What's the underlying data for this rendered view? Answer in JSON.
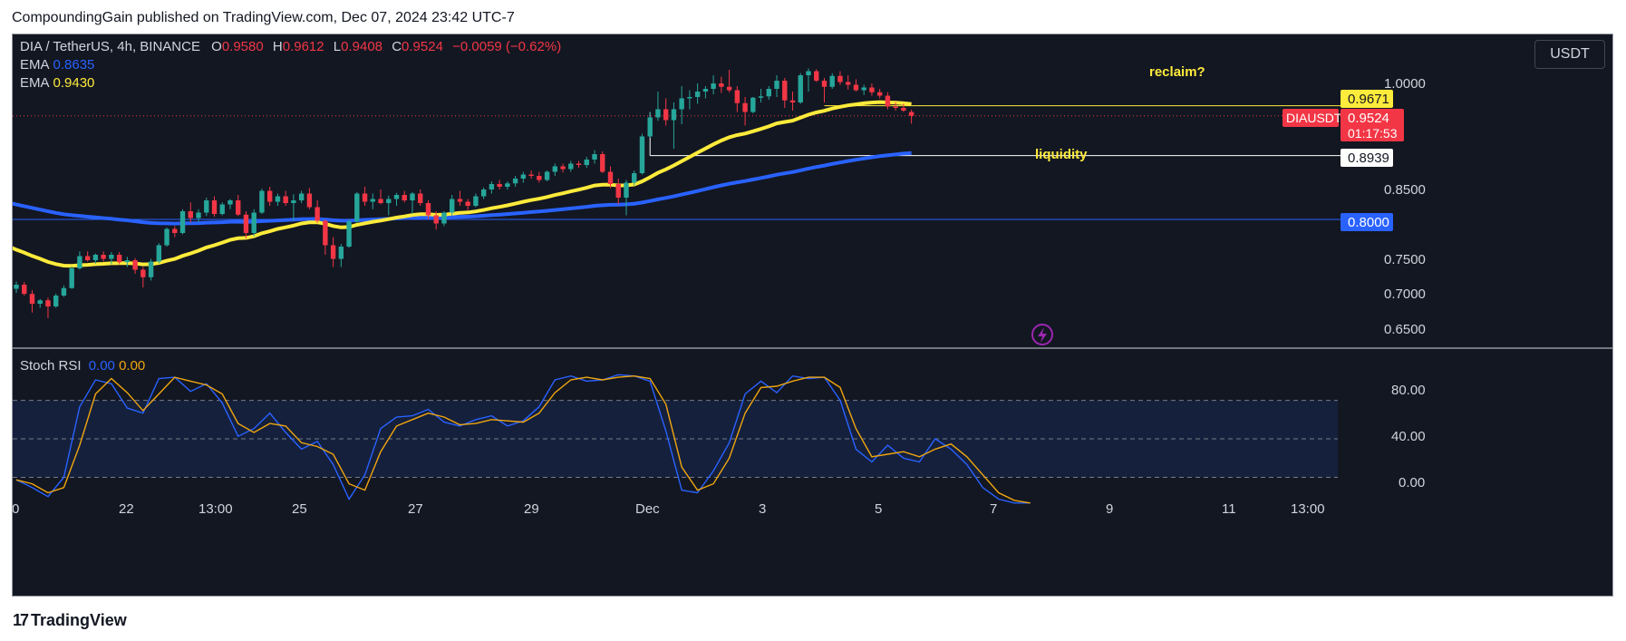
{
  "header": {
    "text": "CompoundingGain published on TradingView.com, Dec 07, 2024 23:42 UTC-7"
  },
  "footer": {
    "logo_text": "TradingView"
  },
  "legend": {
    "symbol": "DIA / TetherUS, 4h, BINANCE",
    "o_label": "O",
    "o_value": "0.9580",
    "h_label": "H",
    "h_value": "0.9612",
    "l_label": "L",
    "l_value": "0.9408",
    "c_label": "C",
    "c_value": "0.9524",
    "change": "−0.0059 (−0.62%)",
    "ema1_label": "EMA",
    "ema1_value": "0.8635",
    "ema2_label": "EMA",
    "ema2_value": "0.9430"
  },
  "stoch_legend": {
    "label": "Stoch RSI",
    "k_value": "0.00",
    "d_value": "0.00"
  },
  "currency_button": "USDT",
  "colors": {
    "background": "#131722",
    "up": "#26a69a",
    "down": "#f23645",
    "ema_fast": "#2962ff",
    "ema_slow": "#ffeb3b",
    "stoch_k": "#2962ff",
    "stoch_d": "#f0a60f"
  },
  "chart_data": {
    "type": "candlestick",
    "symbol": "DIAUSDT",
    "x_ticks": [
      "0",
      "22",
      "13:00",
      "25",
      "27",
      "29",
      "Dec",
      "3",
      "5",
      "7",
      "9",
      "11",
      "13:00"
    ],
    "y_ticks": [
      "1.0000",
      "0.8500",
      "0.7500",
      "0.7000",
      "0.6500"
    ],
    "ylim": [
      0.612,
      1.072
    ],
    "price_labels": {
      "level_0967": "0.9671",
      "symbol_tag": "DIAUSDT",
      "last_price": "0.9524",
      "countdown": "01:17:53",
      "level_0894": "0.8939",
      "level_0800": "0.8000"
    },
    "horizontal_levels": [
      {
        "value": 0.9671,
        "color": "#ffeb3b"
      },
      {
        "value": 0.8939,
        "color": "#ffffff"
      },
      {
        "value": 0.8,
        "color": "#2962ff"
      }
    ],
    "annotations": [
      "reclaim?",
      "liquidity"
    ],
    "candles": [
      [
        0.698,
        0.7085,
        0.692,
        0.704
      ],
      [
        0.704,
        0.708,
        0.688,
        0.6905
      ],
      [
        0.6905,
        0.696,
        0.663,
        0.676
      ],
      [
        0.676,
        0.683,
        0.67,
        0.681
      ],
      [
        0.681,
        0.685,
        0.655,
        0.672
      ],
      [
        0.672,
        0.691,
        0.67,
        0.688
      ],
      [
        0.688,
        0.703,
        0.686,
        0.699
      ],
      [
        0.699,
        0.731,
        0.698,
        0.728
      ],
      [
        0.728,
        0.753,
        0.726,
        0.746
      ],
      [
        0.746,
        0.753,
        0.738,
        0.74
      ],
      [
        0.74,
        0.75,
        0.735,
        0.748
      ],
      [
        0.748,
        0.753,
        0.738,
        0.742
      ],
      [
        0.742,
        0.752,
        0.734,
        0.748
      ],
      [
        0.748,
        0.752,
        0.734,
        0.737
      ],
      [
        0.737,
        0.745,
        0.73,
        0.74
      ],
      [
        0.74,
        0.743,
        0.72,
        0.726
      ],
      [
        0.726,
        0.73,
        0.7,
        0.715
      ],
      [
        0.715,
        0.742,
        0.71,
        0.738
      ],
      [
        0.738,
        0.765,
        0.735,
        0.762
      ],
      [
        0.762,
        0.788,
        0.76,
        0.786
      ],
      [
        0.786,
        0.79,
        0.774,
        0.78
      ],
      [
        0.78,
        0.815,
        0.778,
        0.812
      ],
      [
        0.812,
        0.825,
        0.795,
        0.802
      ],
      [
        0.802,
        0.815,
        0.796,
        0.81
      ],
      [
        0.81,
        0.832,
        0.805,
        0.828
      ],
      [
        0.828,
        0.834,
        0.804,
        0.808
      ],
      [
        0.808,
        0.825,
        0.806,
        0.822
      ],
      [
        0.822,
        0.83,
        0.815,
        0.828
      ],
      [
        0.828,
        0.836,
        0.805,
        0.807
      ],
      [
        0.807,
        0.812,
        0.772,
        0.78
      ],
      [
        0.78,
        0.815,
        0.775,
        0.81
      ],
      [
        0.81,
        0.845,
        0.808,
        0.842
      ],
      [
        0.842,
        0.848,
        0.82,
        0.826
      ],
      [
        0.826,
        0.838,
        0.82,
        0.834
      ],
      [
        0.834,
        0.842,
        0.82,
        0.824
      ],
      [
        0.824,
        0.837,
        0.798,
        0.828
      ],
      [
        0.828,
        0.842,
        0.824,
        0.838
      ],
      [
        0.838,
        0.846,
        0.815,
        0.818
      ],
      [
        0.818,
        0.828,
        0.795,
        0.798
      ],
      [
        0.798,
        0.8,
        0.748,
        0.762
      ],
      [
        0.762,
        0.774,
        0.73,
        0.742
      ],
      [
        0.742,
        0.764,
        0.73,
        0.76
      ],
      [
        0.76,
        0.8,
        0.758,
        0.797
      ],
      [
        0.797,
        0.84,
        0.795,
        0.838
      ],
      [
        0.838,
        0.848,
        0.82,
        0.826
      ],
      [
        0.826,
        0.838,
        0.815,
        0.83
      ],
      [
        0.83,
        0.844,
        0.822,
        0.824
      ],
      [
        0.824,
        0.835,
        0.806,
        0.83
      ],
      [
        0.83,
        0.839,
        0.82,
        0.836
      ],
      [
        0.836,
        0.842,
        0.825,
        0.828
      ],
      [
        0.828,
        0.84,
        0.808,
        0.838
      ],
      [
        0.838,
        0.844,
        0.82,
        0.824
      ],
      [
        0.824,
        0.828,
        0.8,
        0.806
      ],
      [
        0.806,
        0.812,
        0.785,
        0.794
      ],
      [
        0.794,
        0.812,
        0.79,
        0.81
      ],
      [
        0.81,
        0.836,
        0.806,
        0.83
      ],
      [
        0.83,
        0.842,
        0.82,
        0.826
      ],
      [
        0.826,
        0.83,
        0.814,
        0.82
      ],
      [
        0.82,
        0.838,
        0.818,
        0.834
      ],
      [
        0.834,
        0.847,
        0.83,
        0.844
      ],
      [
        0.844,
        0.856,
        0.838,
        0.852
      ],
      [
        0.852,
        0.858,
        0.844,
        0.848
      ],
      [
        0.848,
        0.856,
        0.844,
        0.853
      ],
      [
        0.853,
        0.864,
        0.848,
        0.86
      ],
      [
        0.86,
        0.87,
        0.854,
        0.866
      ],
      [
        0.866,
        0.872,
        0.86,
        0.864
      ],
      [
        0.864,
        0.87,
        0.854,
        0.858
      ],
      [
        0.858,
        0.872,
        0.856,
        0.87
      ],
      [
        0.87,
        0.882,
        0.864,
        0.878
      ],
      [
        0.878,
        0.882,
        0.869,
        0.874
      ],
      [
        0.874,
        0.886,
        0.87,
        0.882
      ],
      [
        0.882,
        0.886,
        0.876,
        0.88
      ],
      [
        0.88,
        0.892,
        0.876,
        0.888
      ],
      [
        0.888,
        0.902,
        0.882,
        0.896
      ],
      [
        0.896,
        0.9,
        0.868,
        0.87
      ],
      [
        0.87,
        0.878,
        0.846,
        0.852
      ],
      [
        0.852,
        0.86,
        0.822,
        0.832
      ],
      [
        0.832,
        0.858,
        0.806,
        0.854
      ],
      [
        0.854,
        0.872,
        0.85,
        0.868
      ],
      [
        0.868,
        0.926,
        0.866,
        0.922
      ],
      [
        0.922,
        0.958,
        0.92,
        0.95
      ],
      [
        0.95,
        0.988,
        0.945,
        0.962
      ],
      [
        0.962,
        0.978,
        0.938,
        0.946
      ],
      [
        0.946,
        0.972,
        0.904,
        0.962
      ],
      [
        0.962,
        0.996,
        0.94,
        0.978
      ],
      [
        0.978,
        0.99,
        0.962,
        0.98
      ],
      [
        0.98,
        1.0,
        0.97,
        0.988
      ],
      [
        0.988,
        0.996,
        0.978,
        0.992
      ],
      [
        0.992,
        1.012,
        0.984,
        1.0
      ],
      [
        1.0,
        1.01,
        0.986,
        0.995
      ],
      [
        0.995,
        1.02,
        0.987,
        0.99
      ],
      [
        0.99,
        0.996,
        0.958,
        0.971
      ],
      [
        0.971,
        0.98,
        0.938,
        0.958
      ],
      [
        0.958,
        0.98,
        0.956,
        0.979
      ],
      [
        0.979,
        0.992,
        0.972,
        0.981
      ],
      [
        0.981,
        0.996,
        0.976,
        0.992
      ],
      [
        0.992,
        1.012,
        0.98,
        1.004
      ],
      [
        1.004,
        1.008,
        0.964,
        0.975
      ],
      [
        0.975,
        0.988,
        0.96,
        0.972
      ],
      [
        0.972,
        1.015,
        0.97,
        1.012
      ],
      [
        1.012,
        1.022,
        0.988,
        1.018
      ],
      [
        1.018,
        1.021,
        1.002,
        1.004
      ],
      [
        1.004,
        1.008,
        0.972,
        0.995
      ],
      [
        0.995,
        1.015,
        0.992,
        1.011
      ],
      [
        1.011,
        1.018,
        0.998,
        1.002
      ],
      [
        1.002,
        1.012,
        0.991,
        0.998
      ],
      [
        0.998,
        1.006,
        0.988,
        0.99
      ],
      [
        0.99,
        0.998,
        0.983,
        0.994
      ],
      [
        0.994,
        1.0,
        0.982,
        0.987
      ],
      [
        0.987,
        0.992,
        0.978,
        0.982
      ],
      [
        0.982,
        0.987,
        0.962,
        0.966
      ],
      [
        0.966,
        0.972,
        0.96,
        0.964
      ],
      [
        0.964,
        0.97,
        0.958,
        0.96
      ],
      [
        0.958,
        0.9612,
        0.9408,
        0.9524
      ]
    ],
    "ema_fast": {
      "name": "EMA",
      "start": 0.824,
      "end": 0.8635
    },
    "ema_slow": {
      "name": "EMA",
      "start": 0.759,
      "end": 0.943
    },
    "stoch": {
      "name": "Stoch RSI",
      "ylim": [
        -15,
        120
      ],
      "y_ticks": [
        "80.00",
        "40.00",
        "0.00"
      ],
      "bands": [
        20,
        50,
        80
      ],
      "k": [
        [
          0,
          18
        ],
        [
          2,
          12
        ],
        [
          4,
          5
        ],
        [
          6,
          20
        ],
        [
          8,
          75
        ],
        [
          10,
          96
        ],
        [
          12,
          93
        ],
        [
          14,
          74
        ],
        [
          16,
          70
        ],
        [
          18,
          97
        ],
        [
          20,
          98
        ],
        [
          22,
          87
        ],
        [
          24,
          93
        ],
        [
          26,
          78
        ],
        [
          28,
          52
        ],
        [
          30,
          58
        ],
        [
          32,
          70
        ],
        [
          34,
          55
        ],
        [
          36,
          42
        ],
        [
          38,
          48
        ],
        [
          40,
          30
        ],
        [
          42,
          3
        ],
        [
          44,
          22
        ],
        [
          46,
          58
        ],
        [
          48,
          67
        ],
        [
          50,
          68
        ],
        [
          52,
          73
        ],
        [
          54,
          63
        ],
        [
          56,
          60
        ],
        [
          58,
          65
        ],
        [
          60,
          68
        ],
        [
          62,
          60
        ],
        [
          64,
          64
        ],
        [
          66,
          75
        ],
        [
          68,
          96
        ],
        [
          70,
          99
        ],
        [
          72,
          95
        ],
        [
          74,
          96
        ],
        [
          76,
          100
        ],
        [
          78,
          99
        ],
        [
          80,
          95
        ],
        [
          82,
          56
        ],
        [
          84,
          10
        ],
        [
          86,
          8
        ],
        [
          88,
          25
        ],
        [
          90,
          47
        ],
        [
          92,
          85
        ],
        [
          94,
          95
        ],
        [
          96,
          86
        ],
        [
          98,
          99
        ],
        [
          100,
          97
        ],
        [
          102,
          98
        ],
        [
          104,
          80
        ],
        [
          106,
          42
        ],
        [
          108,
          32
        ],
        [
          110,
          45
        ],
        [
          112,
          35
        ],
        [
          114,
          32
        ],
        [
          116,
          50
        ],
        [
          118,
          42
        ],
        [
          120,
          30
        ],
        [
          122,
          12
        ],
        [
          124,
          3
        ],
        [
          126,
          0
        ],
        [
          128,
          0
        ]
      ],
      "d": [
        [
          0,
          18
        ],
        [
          2,
          15
        ],
        [
          4,
          8
        ],
        [
          6,
          12
        ],
        [
          8,
          45
        ],
        [
          10,
          85
        ],
        [
          12,
          97
        ],
        [
          14,
          86
        ],
        [
          16,
          72
        ],
        [
          18,
          85
        ],
        [
          20,
          98
        ],
        [
          22,
          95
        ],
        [
          24,
          92
        ],
        [
          26,
          85
        ],
        [
          28,
          62
        ],
        [
          30,
          55
        ],
        [
          32,
          62
        ],
        [
          34,
          60
        ],
        [
          36,
          47
        ],
        [
          38,
          44
        ],
        [
          40,
          38
        ],
        [
          42,
          15
        ],
        [
          44,
          10
        ],
        [
          46,
          40
        ],
        [
          48,
          60
        ],
        [
          50,
          65
        ],
        [
          52,
          70
        ],
        [
          54,
          67
        ],
        [
          56,
          61
        ],
        [
          58,
          62
        ],
        [
          60,
          65
        ],
        [
          62,
          64
        ],
        [
          64,
          63
        ],
        [
          66,
          70
        ],
        [
          68,
          86
        ],
        [
          70,
          96
        ],
        [
          72,
          98
        ],
        [
          74,
          96
        ],
        [
          76,
          98
        ],
        [
          78,
          99
        ],
        [
          80,
          97
        ],
        [
          82,
          77
        ],
        [
          84,
          28
        ],
        [
          86,
          10
        ],
        [
          88,
          15
        ],
        [
          90,
          35
        ],
        [
          92,
          70
        ],
        [
          94,
          90
        ],
        [
          96,
          91
        ],
        [
          98,
          95
        ],
        [
          100,
          98
        ],
        [
          102,
          98
        ],
        [
          104,
          90
        ],
        [
          106,
          58
        ],
        [
          108,
          36
        ],
        [
          110,
          38
        ],
        [
          112,
          40
        ],
        [
          114,
          36
        ],
        [
          116,
          42
        ],
        [
          118,
          46
        ],
        [
          120,
          36
        ],
        [
          122,
          22
        ],
        [
          124,
          8
        ],
        [
          126,
          2
        ],
        [
          128,
          0
        ]
      ]
    }
  }
}
